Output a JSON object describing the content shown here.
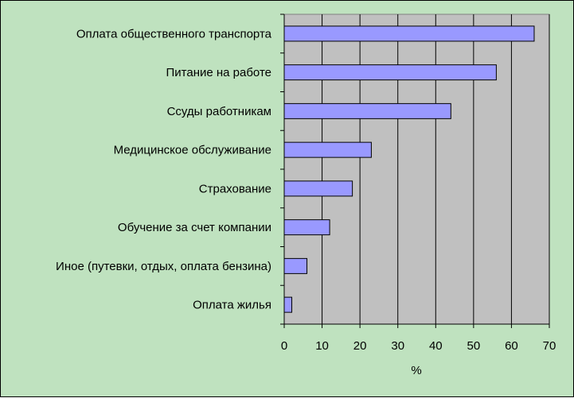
{
  "chart_data": {
    "type": "bar",
    "orientation": "horizontal",
    "categories": [
      "Оплата общественного транспорта",
      "Питание на работе",
      "Ссуды работникам",
      "Медицинское обслуживание",
      "Страхование",
      "Обучение за счет компании",
      "Иное (путевки, отдых, оплата бензина)",
      "Оплата жилья"
    ],
    "values": [
      66,
      56,
      44,
      23,
      18,
      12,
      6,
      2
    ],
    "xlabel": "%",
    "ylabel": "",
    "xlim": [
      0,
      70
    ],
    "xticks": [
      "0",
      "10",
      "20",
      "30",
      "40",
      "50",
      "60",
      "70"
    ],
    "grid": true,
    "legend": "none"
  },
  "colors": {
    "background": "#bfe2bf",
    "plot_area": "#c0c0c0",
    "bar_fill": "#9999ff",
    "bar_stroke": "#000000",
    "gridline": "#000000"
  }
}
